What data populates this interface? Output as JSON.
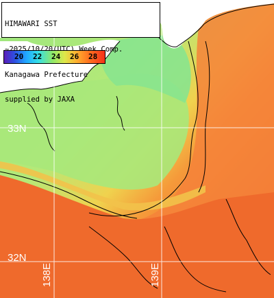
{
  "title": {
    "lines": [
      "HIMAWARI SST",
      "~2025/10/20(UTC) Week Comp.",
      "Kanagawa Prefecture",
      "supplied by JAXA"
    ]
  },
  "colorbar": {
    "ticks": [
      "20",
      "22",
      "24",
      "26",
      "28"
    ],
    "colors": [
      "#5a1eb8",
      "#2f4de0",
      "#21a8ff",
      "#35e0e6",
      "#8fe86a",
      "#dde84a",
      "#ffb030",
      "#ff7420",
      "#f5301a"
    ]
  },
  "grid_labels": {
    "lat_33": "33N",
    "lat_32": "32N",
    "lon_138": "138E",
    "lon_139": "139E"
  },
  "colors": {
    "land": "#ffffff",
    "cool_water": "#9ee880",
    "mid_water": "#d6e86c",
    "warm_water": "#f47a36",
    "hot_water": "#ee5a2c",
    "grid": "#ffffff",
    "contour": "#000000"
  }
}
